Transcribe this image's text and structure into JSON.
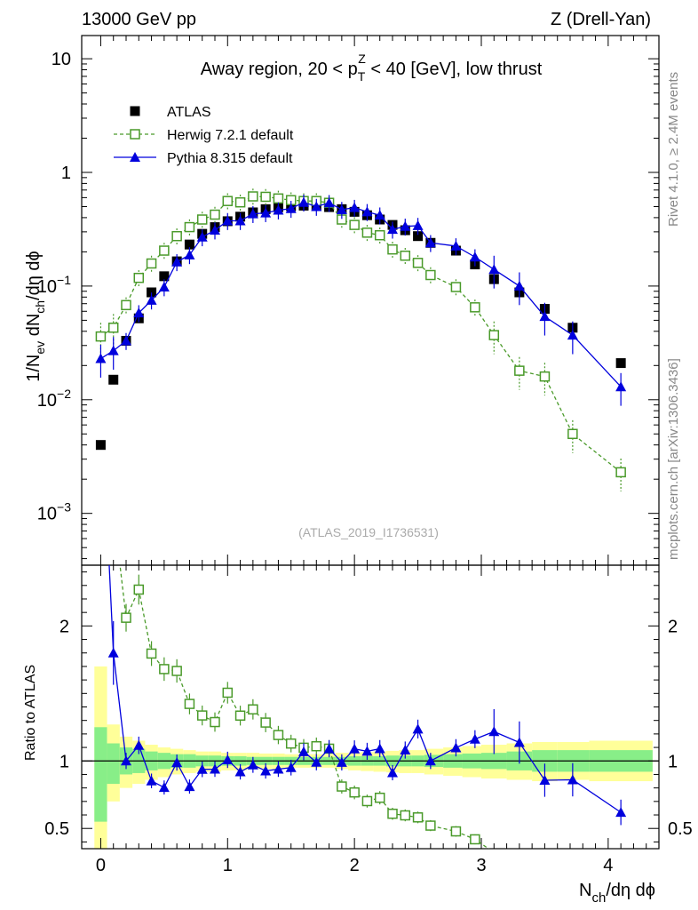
{
  "header": {
    "left": "13000 GeV pp",
    "right": "Z (Drell-Yan)"
  },
  "side_labels": {
    "rivet": "Rivet 4.1.0, ≥ 2.4M events",
    "mcplots": "mcplots.cern.ch [arXiv:1306.3436]"
  },
  "chart_data": {
    "type": "scatter",
    "title": "Away region, 20 < p_T^Z < 40 [GeV], low thrust",
    "title_parts": {
      "pre": "Away region, 20 < p",
      "sub": "T",
      "sup": "Z",
      "post": " < 40 [GeV], low thrust"
    },
    "watermark": "(ATLAS_2019_I1736531)",
    "xlabel": "N_ch/dη dϕ",
    "xlabel_parts": {
      "n": "N",
      "sub": "ch",
      "rest": "/dη dϕ"
    },
    "ylabel": "1/N_ev dN_ch/dη dϕ",
    "ylabel_parts": {
      "a": "1/N",
      "s1": "ev",
      "b": " dN",
      "s2": "ch",
      "c": "/dη dϕ"
    },
    "ratio_ylabel": "Ratio to ATLAS",
    "xlim": [
      -0.15,
      4.4
    ],
    "ylim": [
      0.00035,
      16
    ],
    "yscale": "log",
    "ratio_ylim": [
      0.35,
      2.45
    ],
    "x_ticks": [
      0,
      1,
      2,
      3,
      4
    ],
    "x_tick_labels": [
      "0",
      "1",
      "2",
      "3",
      "4"
    ],
    "y_ticks": [
      0.001,
      0.01,
      0.1,
      1,
      10
    ],
    "y_tick_labels": [
      {
        "base": "10",
        "exp": "−3"
      },
      {
        "base": "10",
        "exp": "−2"
      },
      {
        "base": "10",
        "exp": "−1"
      },
      {
        "base": "1",
        "exp": ""
      },
      {
        "base": "10",
        "exp": ""
      }
    ],
    "ratio_ticks": [
      0.5,
      1,
      2
    ],
    "ratio_tick_labels": [
      "0.5",
      "1",
      "2"
    ],
    "x": [
      0.0,
      0.1,
      0.2,
      0.3,
      0.4,
      0.5,
      0.6,
      0.7,
      0.8,
      0.9,
      1.0,
      1.1,
      1.2,
      1.3,
      1.4,
      1.5,
      1.6,
      1.7,
      1.8,
      1.9,
      2.0,
      2.1,
      2.2,
      2.3,
      2.4,
      2.5,
      2.6,
      2.8,
      2.95,
      3.1,
      3.3,
      3.5,
      3.72,
      4.1
    ],
    "series": [
      {
        "name": "ATLAS",
        "color": "#000000",
        "marker": "filled-square",
        "values": [
          0.004,
          0.015,
          0.033,
          0.052,
          0.088,
          0.122,
          0.165,
          0.232,
          0.288,
          0.33,
          0.372,
          0.408,
          0.445,
          0.475,
          0.495,
          0.505,
          0.51,
          0.505,
          0.495,
          0.475,
          0.45,
          0.42,
          0.385,
          0.345,
          0.31,
          0.275,
          0.24,
          0.205,
          0.155,
          0.115,
          0.088,
          0.063,
          0.043,
          0.021
        ]
      },
      {
        "name": "Herwig 7.2.1 default",
        "color": "#4a9a2a",
        "marker": "open-square",
        "line": "dashed",
        "values": [
          0.036,
          0.043,
          0.068,
          0.118,
          0.158,
          0.205,
          0.275,
          0.33,
          0.385,
          0.425,
          0.56,
          0.545,
          0.615,
          0.61,
          0.59,
          0.57,
          0.56,
          0.56,
          0.54,
          0.385,
          0.345,
          0.295,
          0.28,
          0.21,
          0.185,
          0.16,
          0.125,
          0.098,
          0.065,
          0.037,
          0.018,
          0.016,
          0.005,
          0.0023
        ]
      },
      {
        "name": "Pythia 8.315 default",
        "color": "#0000dd",
        "marker": "filled-triangle",
        "line": "solid",
        "values": [
          0.023,
          0.027,
          0.033,
          0.058,
          0.075,
          0.098,
          0.163,
          0.188,
          0.27,
          0.31,
          0.375,
          0.375,
          0.432,
          0.44,
          0.465,
          0.48,
          0.545,
          0.5,
          0.54,
          0.47,
          0.49,
          0.45,
          0.42,
          0.315,
          0.335,
          0.34,
          0.24,
          0.225,
          0.18,
          0.14,
          0.1,
          0.054,
          0.037,
          0.013
        ]
      }
    ],
    "band_edges": [
      -0.05,
      0.05,
      0.15,
      0.25,
      0.35,
      0.45,
      0.55,
      0.65,
      0.75,
      0.85,
      0.95,
      1.05,
      1.15,
      1.25,
      1.35,
      1.45,
      1.55,
      1.65,
      1.75,
      1.85,
      1.95,
      2.05,
      2.15,
      2.25,
      2.35,
      2.45,
      2.55,
      2.7,
      2.85,
      3.0,
      3.2,
      3.4,
      3.6,
      3.85,
      4.35
    ],
    "band_stat": [
      0.25,
      0.13,
      0.1,
      0.09,
      0.07,
      0.06,
      0.05,
      0.05,
      0.04,
      0.04,
      0.035,
      0.035,
      0.03,
      0.03,
      0.03,
      0.03,
      0.03,
      0.03,
      0.03,
      0.03,
      0.035,
      0.035,
      0.035,
      0.04,
      0.04,
      0.04,
      0.045,
      0.05,
      0.055,
      0.06,
      0.07,
      0.08,
      0.08,
      0.08
    ],
    "band_total": [
      0.7,
      0.27,
      0.18,
      0.15,
      0.12,
      0.1,
      0.09,
      0.08,
      0.07,
      0.07,
      0.06,
      0.06,
      0.06,
      0.055,
      0.055,
      0.05,
      0.05,
      0.05,
      0.05,
      0.06,
      0.06,
      0.065,
      0.07,
      0.075,
      0.08,
      0.08,
      0.09,
      0.1,
      0.11,
      0.12,
      0.13,
      0.14,
      0.14,
      0.15
    ],
    "band_low_total": [
      0.95,
      0.3,
      0.2,
      0.17,
      0.14,
      0.12,
      0.1,
      0.09,
      0.08,
      0.08,
      0.07,
      0.07,
      0.06,
      0.06,
      0.06,
      0.05,
      0.05,
      0.05,
      0.05,
      0.06,
      0.07,
      0.075,
      0.08,
      0.085,
      0.09,
      0.09,
      0.1,
      0.11,
      0.12,
      0.13,
      0.14,
      0.15,
      0.14,
      0.15
    ],
    "band_low_stat": [
      0.45,
      0.17,
      0.1,
      0.09,
      0.07,
      0.06,
      0.05,
      0.05,
      0.04,
      0.04,
      0.035,
      0.035,
      0.03,
      0.03,
      0.03,
      0.03,
      0.03,
      0.03,
      0.03,
      0.03,
      0.035,
      0.035,
      0.035,
      0.04,
      0.04,
      0.04,
      0.045,
      0.05,
      0.055,
      0.06,
      0.07,
      0.08,
      0.08,
      0.08
    ],
    "band_colors": {
      "stat": "#88ee88",
      "total": "#ffff99"
    },
    "legend_position": "top-left"
  }
}
